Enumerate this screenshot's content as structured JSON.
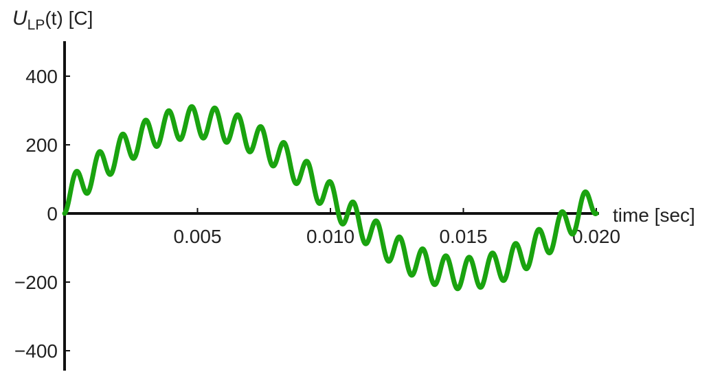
{
  "chart_data": {
    "type": "line",
    "ylabel": {
      "main": "U",
      "subscript": "LP",
      "rest": "(t) [C]"
    },
    "xlabel": "time [sec]",
    "xlim": [
      0,
      0.02
    ],
    "ylim": [
      -450,
      500
    ],
    "x_ticks": [
      0.005,
      0.01,
      0.015,
      0.02
    ],
    "x_tick_labels": [
      "0.005",
      "0.010",
      "0.015",
      "0.020"
    ],
    "y_ticks": [
      -400,
      -200,
      0,
      200,
      400
    ],
    "y_tick_labels": [
      "−400",
      "−200",
      "0",
      "200",
      "400"
    ],
    "series": [
      {
        "color": "#1aa30f",
        "formula": {
          "fundamental_amplitude": 220,
          "fundamental_hz": 50,
          "ripple_amplitude": 46,
          "ripple_hz": 1150,
          "ripple_phase_deg": 90
        }
      }
    ],
    "grid": false
  }
}
